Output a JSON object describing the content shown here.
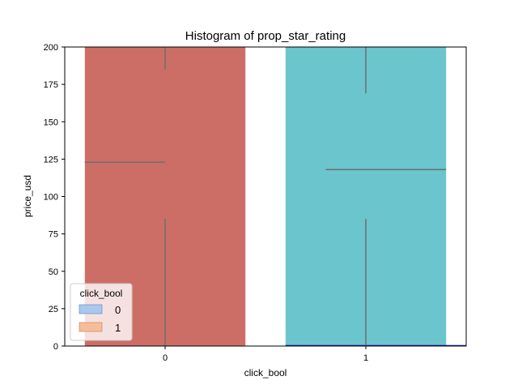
{
  "chart_data": {
    "type": "bar",
    "title": "Histogram of prop_star_rating",
    "xlabel": "click_bool",
    "ylabel": "price_usd",
    "categories": [
      "0",
      "1"
    ],
    "ylim": [
      0,
      200
    ],
    "yticks": [
      0,
      25,
      50,
      75,
      100,
      125,
      150,
      175,
      200
    ],
    "bars": [
      {
        "category": "0",
        "value": 200,
        "color": "#cc6e66"
      },
      {
        "category": "1",
        "value": 200,
        "color": "#6ac5cd"
      }
    ],
    "boxplot_overlay": [
      {
        "category": "0",
        "median": 123,
        "whisker_low": 0,
        "q1": 85,
        "q3": 185,
        "whisker_high": 200
      },
      {
        "category": "1",
        "median": 118,
        "whisker_low": 0,
        "q1": 85,
        "q3": 169,
        "whisker_high": 200
      }
    ],
    "histogram_overlay": [
      {
        "category": "1",
        "value": 0.7,
        "color": "#1f1fbf"
      }
    ],
    "legend": {
      "title": "click_bool",
      "position": "lower-left",
      "entries": [
        {
          "label": "0",
          "color": "#a9c8ee"
        },
        {
          "label": "1",
          "color": "#f6bd98"
        }
      ]
    },
    "grid": false
  }
}
